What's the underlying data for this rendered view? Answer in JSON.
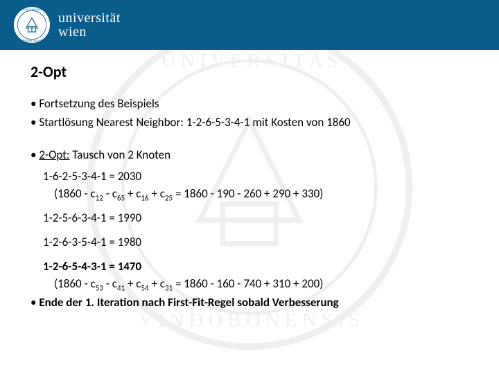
{
  "header": {
    "brand_line1": "universität",
    "brand_line2": "wien",
    "bar_color": "#0a5c8a"
  },
  "slide": {
    "title": "2-Opt",
    "bullets": [
      "Fortsetzung des Beispiels",
      "Startlösung Nearest Neighbor: 1-2-6-5-3-4-1 mit Kosten von 1860"
    ],
    "section_label_prefix": "2-Opt:",
    "section_label_rest": " Tausch von 2 Knoten",
    "results": [
      {
        "tour": "1-6-2-5-3-4-1 = 2030",
        "calc_html": "(1860 - c<sub>12</sub> - c<sub>65</sub> + c<sub>16</sub> + c<sub>25</sub> = 1860 - 190 - 260 + 290 + 330)",
        "bold": false
      },
      {
        "tour": "1-2-5-6-3-4-1 = 1990",
        "bold": false
      },
      {
        "tour": "1-2-6-3-5-4-1 = 1980",
        "bold": false
      },
      {
        "tour": "1-2-6-5-4-3-1 = 1470",
        "calc_html": "(1860 - c<sub>53</sub> - c<sub>41</sub> + c<sub>54</sub> + c<sub>31</sub> = 1860 - 160 - 740 + 310 + 200)",
        "bold": true
      }
    ],
    "footer_bullet": "Ende der 1. Iteration nach First-Fit-Regel sobald Verbesserung"
  }
}
